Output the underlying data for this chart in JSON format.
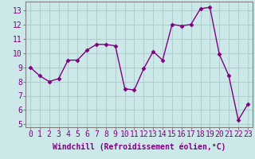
{
  "x": [
    0,
    1,
    2,
    3,
    4,
    5,
    6,
    7,
    8,
    9,
    10,
    11,
    12,
    13,
    14,
    15,
    16,
    17,
    18,
    19,
    20,
    21,
    22,
    23
  ],
  "y": [
    9.0,
    8.4,
    8.0,
    8.2,
    9.5,
    9.5,
    10.2,
    10.6,
    10.6,
    10.5,
    7.5,
    7.4,
    8.9,
    10.1,
    9.5,
    12.0,
    11.9,
    12.0,
    13.1,
    13.2,
    9.9,
    8.4,
    5.3,
    6.4
  ],
  "line_color": "#800080",
  "marker": "D",
  "marker_size": 2.5,
  "bg_color": "#cce8e8",
  "grid_color": "#b0d0d0",
  "xlabel": "Windchill (Refroidissement éolien,°C)",
  "xlabel_fontsize": 7,
  "xtick_labels": [
    "0",
    "1",
    "2",
    "3",
    "4",
    "5",
    "6",
    "7",
    "8",
    "9",
    "10",
    "11",
    "12",
    "13",
    "14",
    "15",
    "16",
    "17",
    "18",
    "19",
    "20",
    "21",
    "22",
    "23"
  ],
  "ylim": [
    4.8,
    13.6
  ],
  "xlim": [
    -0.5,
    23.5
  ],
  "yticks": [
    5,
    6,
    7,
    8,
    9,
    10,
    11,
    12,
    13
  ],
  "tick_fontsize": 7,
  "line_width": 1.0
}
